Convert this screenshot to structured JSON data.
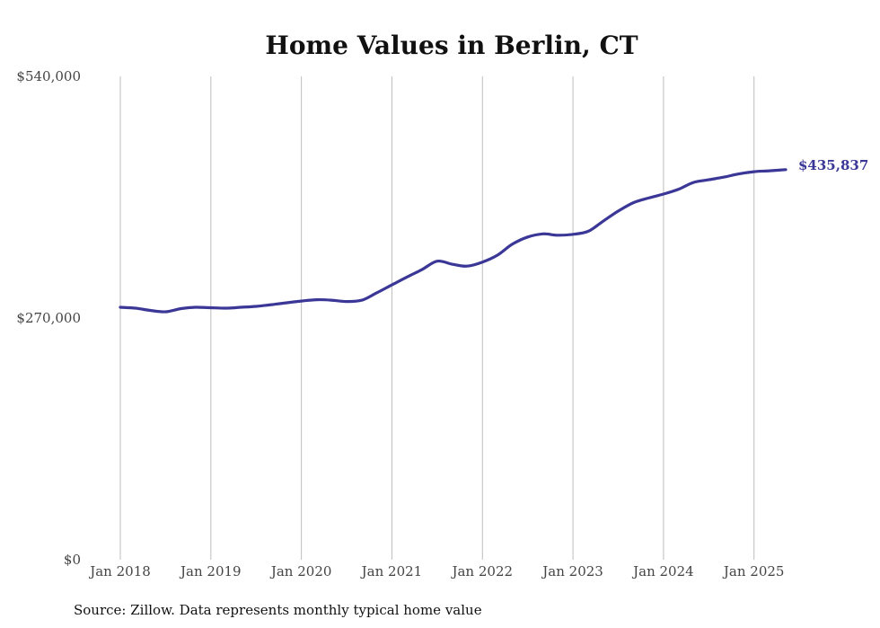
{
  "chart_data": {
    "type": "line",
    "title": "Home Values in Berlin, CT",
    "source_note": "Source: Zillow. Data represents monthly typical home value",
    "y_ticks": [
      {
        "value": 540000,
        "label": "$540,000"
      },
      {
        "value": 270000,
        "label": "$270,000"
      },
      {
        "value": 0,
        "label": "$0"
      }
    ],
    "x_ticks": [
      {
        "value": 2018,
        "label": "Jan 2018"
      },
      {
        "value": 2019,
        "label": "Jan 2019"
      },
      {
        "value": 2020,
        "label": "Jan 2020"
      },
      {
        "value": 2021,
        "label": "Jan 2021"
      },
      {
        "value": 2022,
        "label": "Jan 2022"
      },
      {
        "value": 2023,
        "label": "Jan 2023"
      },
      {
        "value": 2024,
        "label": "Jan 2024"
      },
      {
        "value": 2025,
        "label": "Jan 2025"
      }
    ],
    "xlim": [
      2018,
      2025.35
    ],
    "ylim": [
      0,
      540000
    ],
    "grid": "vertical",
    "line_color": "#3a3797",
    "end_label": "$435,837",
    "series": [
      {
        "x": [
          2018.0,
          2018.17,
          2018.33,
          2018.5,
          2018.67,
          2018.83,
          2019.0,
          2019.17,
          2019.33,
          2019.5,
          2019.67,
          2019.83,
          2020.0,
          2020.17,
          2020.33,
          2020.5,
          2020.67,
          2020.83,
          2021.0,
          2021.17,
          2021.33,
          2021.5,
          2021.67,
          2021.83,
          2022.0,
          2022.17,
          2022.33,
          2022.5,
          2022.67,
          2022.83,
          2023.0,
          2023.17,
          2023.33,
          2023.5,
          2023.67,
          2023.83,
          2024.0,
          2024.17,
          2024.33,
          2024.5,
          2024.67,
          2024.83,
          2025.0,
          2025.17,
          2025.35
        ],
        "y": [
          282000,
          281000,
          278500,
          277000,
          280500,
          282000,
          281500,
          281000,
          282000,
          283000,
          285000,
          287000,
          289000,
          290500,
          290000,
          288500,
          290000,
          298000,
          307000,
          316000,
          324000,
          333500,
          330000,
          328000,
          332500,
          340500,
          352500,
          360500,
          364000,
          362500,
          363500,
          367000,
          378000,
          389500,
          399000,
          404000,
          408500,
          414000,
          421500,
          424500,
          427500,
          431000,
          433500,
          434500,
          435837
        ]
      }
    ]
  }
}
